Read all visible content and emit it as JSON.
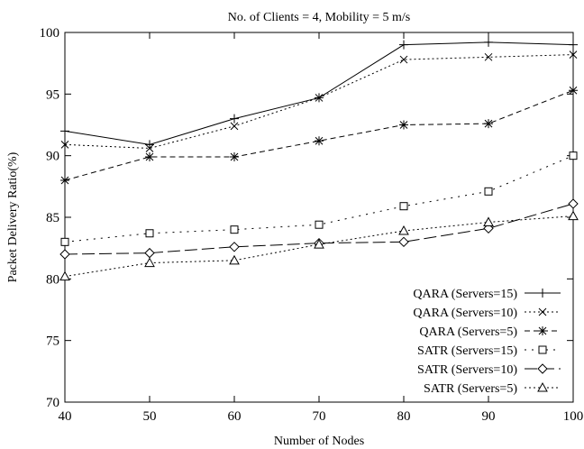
{
  "chart_data": {
    "type": "line",
    "title": "No. of Clients = 4, Mobility = 5 m/s",
    "xlabel": "Number of Nodes",
    "ylabel": "Packet Delivery Ratio(%)",
    "x": [
      40,
      50,
      60,
      70,
      80,
      90,
      100
    ],
    "xlim": [
      40,
      100
    ],
    "ylim": [
      70,
      100
    ],
    "xticks": [
      40,
      50,
      60,
      70,
      80,
      90,
      100
    ],
    "yticks": [
      70,
      75,
      80,
      85,
      90,
      95,
      100
    ],
    "grid": false,
    "legend_position": "bottom-right",
    "series": [
      {
        "name": "QARA (Servers=15)",
        "values": [
          92.0,
          90.9,
          93.0,
          94.7,
          99.0,
          99.2,
          99.0
        ],
        "marker": "plus",
        "dash": "solid",
        "color": "#000000"
      },
      {
        "name": "QARA (Servers=10)",
        "values": [
          90.9,
          90.6,
          92.4,
          94.7,
          97.8,
          98.0,
          98.2
        ],
        "marker": "x",
        "dash": "dotted",
        "color": "#000000"
      },
      {
        "name": "QARA (Servers=5)",
        "values": [
          88.0,
          89.9,
          89.9,
          91.2,
          92.5,
          92.6,
          95.3
        ],
        "marker": "asterisk",
        "dash": "dashed",
        "color": "#000000"
      },
      {
        "name": "SATR (Servers=15)",
        "values": [
          83.0,
          83.7,
          84.0,
          84.4,
          85.9,
          87.1,
          90.0
        ],
        "marker": "square",
        "dash": "sparse-dotted",
        "color": "#000000"
      },
      {
        "name": "SATR (Servers=10)",
        "values": [
          82.0,
          82.1,
          82.6,
          82.9,
          83.0,
          84.1,
          86.1
        ],
        "marker": "diamond",
        "dash": "long-dash",
        "color": "#000000"
      },
      {
        "name": "SATR (Servers=5)",
        "values": [
          80.2,
          81.3,
          81.5,
          82.8,
          83.9,
          84.6,
          85.1
        ],
        "marker": "triangle",
        "dash": "dotted",
        "color": "#000000"
      }
    ]
  }
}
